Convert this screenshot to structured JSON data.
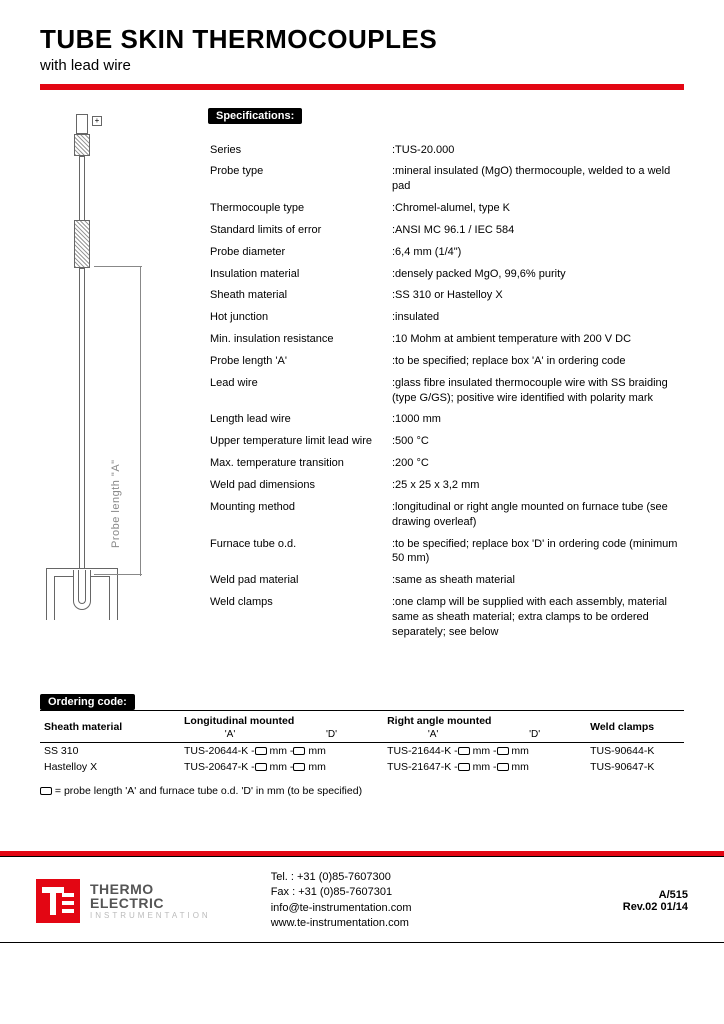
{
  "title": "TUBE SKIN THERMOCOUPLES",
  "subtitle": "with lead wire",
  "specs_header": "Specifications:",
  "diagram_dimension_label": "Probe length \"A\"",
  "specs": [
    {
      "label": "Series",
      "value": ":TUS-20.000"
    },
    {
      "label": "Probe type",
      "value": ":mineral insulated (MgO) thermocouple, welded to a weld pad"
    },
    {
      "label": "Thermocouple type",
      "value": ":Chromel-alumel, type K"
    },
    {
      "label": "Standard limits of error",
      "value": ":ANSI MC 96.1 / IEC 584"
    },
    {
      "label": "Probe diameter",
      "value": ":6,4 mm (1/4\")"
    },
    {
      "label": "Insulation material",
      "value": ":densely packed MgO, 99,6% purity"
    },
    {
      "label": "Sheath material",
      "value": ":SS 310 or Hastelloy X"
    },
    {
      "label": "Hot junction",
      "value": ":insulated"
    },
    {
      "label": "Min. insulation resistance",
      "value": ":10 Mohm at ambient temperature with 200 V DC"
    },
    {
      "label": "Probe length 'A'",
      "value": ":to be specified; replace box 'A' in ordering code"
    },
    {
      "label": "Lead wire",
      "value": ":glass fibre insulated thermocouple wire with SS braiding (type G/GS); positive wire identified with polarity mark"
    },
    {
      "label": "Length lead wire",
      "value": ":1000 mm"
    },
    {
      "label": "Upper temperature limit lead wire",
      "value": ":500 °C"
    },
    {
      "label": "Max. temperature transition",
      "value": ":200 °C"
    },
    {
      "label": "Weld pad dimensions",
      "value": ":25 x 25 x 3,2 mm"
    },
    {
      "label": "Mounting method",
      "value": ":longitudinal or right angle mounted on furnace tube (see drawing overleaf)"
    },
    {
      "label": "Furnace tube o.d.",
      "value": ":to be specified; replace box 'D' in ordering code (minimum 50 mm)"
    },
    {
      "label": "Weld pad material",
      "value": ":same as sheath material"
    },
    {
      "label": "Weld clamps",
      "value": ":one clamp will be supplied with each assembly, material same as sheath material; extra clamps to be ordered separately; see below"
    }
  ],
  "ordering_header": "Ordering code:",
  "order_cols": {
    "c1": "Sheath material",
    "c2": "Longitudinal mounted",
    "c3": "Right angle mounted",
    "c4": "Weld clamps",
    "subA": "'A'",
    "subD": "'D'"
  },
  "order_rows": [
    {
      "mat": "SS 310",
      "long": "TUS-20644-K -",
      "right": "TUS-21644-K -",
      "clamp": "TUS-90644-K"
    },
    {
      "mat": "Hastelloy X",
      "long": "TUS-20647-K -",
      "right": "TUS-21647-K -",
      "clamp": "TUS-90647-K"
    }
  ],
  "order_unit_mm": " mm -",
  "order_unit_mm2": " mm",
  "legend": " = probe length 'A' and furnace tube o.d. 'D' in mm (to be specified)",
  "footer": {
    "logo1": "THERMO",
    "logo2": "ELECTRIC",
    "logo3": "INSTRUMENTATION",
    "tel": "Tel. : +31 (0)85-7607300",
    "fax": "Fax : +31 (0)85-7607301",
    "email": "info@te-instrumentation.com",
    "web": "www.te-instrumentation.com",
    "docid": "A/515",
    "rev": "Rev.02  01/14"
  },
  "colors": {
    "accent": "#e30613",
    "text": "#000000",
    "diagram_line": "#888888"
  }
}
